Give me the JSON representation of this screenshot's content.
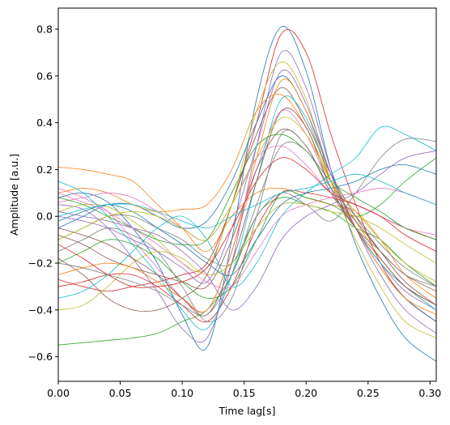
{
  "chart_data": {
    "type": "line",
    "title": "",
    "xlabel": "Time lag[s]",
    "ylabel": "Amplitude [a.u.]",
    "xlim": [
      0.0,
      0.305
    ],
    "ylim": [
      -0.705,
      0.89
    ],
    "xticks": [
      0.0,
      0.05,
      0.1,
      0.15,
      0.2,
      0.25,
      0.3
    ],
    "xtick_labels": [
      "0.00",
      "0.05",
      "0.10",
      "0.15",
      "0.20",
      "0.25",
      "0.30"
    ],
    "yticks": [
      -0.6,
      -0.4,
      -0.2,
      0.0,
      0.2,
      0.4,
      0.6,
      0.8
    ],
    "ytick_labels": [
      "−0.6",
      "−0.4",
      "−0.2",
      "0.0",
      "0.2",
      "0.4",
      "0.6",
      "0.8"
    ],
    "grid": false,
    "legend": "none",
    "colors": [
      "#1f77b4",
      "#ff7f0e",
      "#2ca02c",
      "#d62728",
      "#9467bd",
      "#8c564b",
      "#e377c2",
      "#7f7f7f",
      "#bcbd22",
      "#17becf"
    ],
    "x": [
      0.0,
      0.02,
      0.04,
      0.06,
      0.08,
      0.1,
      0.12,
      0.14,
      0.16,
      0.18,
      0.2,
      0.22,
      0.24,
      0.26,
      0.28,
      0.305
    ],
    "series": [
      {
        "values": [
          0.08,
          0.1,
          0.06,
          -0.05,
          -0.2,
          -0.42,
          -0.56,
          -0.1,
          0.5,
          0.81,
          0.62,
          0.2,
          -0.12,
          -0.35,
          -0.52,
          -0.62
        ]
      },
      {
        "values": [
          0.21,
          0.2,
          0.18,
          0.15,
          0.05,
          -0.05,
          -0.15,
          0.0,
          0.1,
          0.12,
          0.08,
          0.05,
          0.02,
          -0.1,
          -0.25,
          -0.35
        ]
      },
      {
        "values": [
          -0.55,
          -0.54,
          -0.53,
          -0.52,
          -0.5,
          -0.45,
          -0.4,
          -0.25,
          0.0,
          0.08,
          0.05,
          0.02,
          -0.05,
          -0.1,
          -0.2,
          -0.3
        ]
      },
      {
        "values": [
          -0.27,
          -0.3,
          -0.32,
          -0.3,
          -0.28,
          -0.25,
          -0.2,
          0.05,
          0.4,
          0.78,
          0.7,
          0.35,
          0.05,
          -0.2,
          -0.35,
          -0.45
        ]
      },
      {
        "values": [
          0.05,
          0.03,
          -0.05,
          -0.18,
          -0.32,
          -0.48,
          -0.52,
          -0.2,
          0.3,
          0.7,
          0.55,
          0.2,
          -0.05,
          -0.25,
          -0.4,
          -0.5
        ]
      },
      {
        "values": [
          -0.18,
          -0.25,
          -0.35,
          -0.4,
          -0.4,
          -0.35,
          -0.25,
          0.05,
          0.35,
          0.55,
          0.4,
          0.18,
          0.0,
          -0.15,
          -0.28,
          -0.38
        ]
      },
      {
        "values": [
          0.12,
          0.08,
          0.02,
          -0.1,
          -0.22,
          -0.35,
          -0.4,
          -0.15,
          0.2,
          0.45,
          0.35,
          0.12,
          -0.05,
          -0.2,
          -0.3,
          -0.38
        ]
      },
      {
        "values": [
          -0.1,
          -0.05,
          0.0,
          0.0,
          -0.05,
          -0.1,
          -0.18,
          -0.2,
          0.0,
          0.1,
          0.05,
          -0.02,
          0.1,
          0.25,
          0.33,
          0.32
        ]
      },
      {
        "values": [
          0.02,
          0.05,
          0.04,
          -0.02,
          -0.1,
          -0.2,
          -0.22,
          0.05,
          0.45,
          0.66,
          0.5,
          0.15,
          -0.1,
          -0.3,
          -0.45,
          -0.52
        ]
      },
      {
        "values": [
          -0.35,
          -0.32,
          -0.25,
          -0.15,
          -0.05,
          0.0,
          -0.1,
          -0.3,
          -0.2,
          0.0,
          0.1,
          0.18,
          0.25,
          0.38,
          0.35,
          0.28
        ]
      },
      {
        "values": [
          -0.05,
          0.0,
          0.05,
          0.05,
          0.0,
          -0.05,
          -0.02,
          0.15,
          0.4,
          0.6,
          0.45,
          0.18,
          -0.05,
          -0.22,
          -0.35,
          -0.45
        ]
      },
      {
        "values": [
          0.1,
          0.12,
          0.1,
          0.05,
          0.02,
          0.03,
          0.05,
          0.2,
          0.45,
          0.52,
          0.38,
          0.15,
          -0.02,
          -0.18,
          -0.3,
          -0.4
        ]
      },
      {
        "values": [
          -0.2,
          -0.15,
          -0.1,
          -0.12,
          -0.18,
          -0.28,
          -0.35,
          -0.3,
          -0.1,
          0.1,
          0.08,
          0.05,
          0.0,
          0.05,
          0.15,
          0.25
        ]
      },
      {
        "values": [
          -0.3,
          -0.28,
          -0.25,
          -0.25,
          -0.3,
          -0.38,
          -0.45,
          -0.3,
          -0.05,
          0.1,
          0.1,
          0.08,
          0.05,
          0.0,
          -0.05,
          -0.1
        ]
      },
      {
        "values": [
          0.0,
          -0.02,
          -0.05,
          -0.1,
          -0.15,
          -0.22,
          -0.28,
          -0.05,
          0.3,
          0.62,
          0.48,
          0.18,
          -0.05,
          -0.2,
          -0.32,
          -0.4
        ]
      },
      {
        "values": [
          -0.08,
          -0.12,
          -0.18,
          -0.22,
          -0.25,
          -0.28,
          -0.3,
          -0.1,
          0.2,
          0.37,
          0.3,
          0.1,
          -0.02,
          -0.15,
          -0.25,
          -0.32
        ]
      },
      {
        "values": [
          0.06,
          0.08,
          0.1,
          0.08,
          0.02,
          -0.05,
          -0.1,
          0.05,
          0.25,
          0.3,
          0.22,
          0.1,
          0.05,
          0.0,
          -0.05,
          -0.08
        ]
      },
      {
        "values": [
          -0.15,
          -0.1,
          -0.05,
          -0.08,
          -0.15,
          -0.3,
          -0.45,
          -0.35,
          0.0,
          0.35,
          0.3,
          0.1,
          -0.05,
          -0.15,
          -0.25,
          -0.3
        ]
      },
      {
        "values": [
          -0.4,
          -0.38,
          -0.3,
          -0.2,
          -0.15,
          -0.18,
          -0.25,
          -0.2,
          -0.05,
          0.05,
          0.05,
          0.02,
          0.0,
          -0.05,
          -0.12,
          -0.2
        ]
      },
      {
        "values": [
          0.15,
          0.1,
          0.0,
          -0.12,
          -0.25,
          -0.4,
          -0.48,
          -0.25,
          0.15,
          0.5,
          0.42,
          0.15,
          -0.05,
          -0.2,
          -0.3,
          -0.4
        ]
      },
      {
        "values": [
          -0.02,
          0.02,
          0.05,
          0.02,
          -0.05,
          -0.12,
          -0.2,
          -0.25,
          -0.1,
          0.05,
          0.1,
          0.12,
          0.15,
          0.2,
          0.22,
          0.18
        ]
      },
      {
        "values": [
          -0.25,
          -0.22,
          -0.2,
          -0.22,
          -0.28,
          -0.35,
          -0.4,
          -0.15,
          0.25,
          0.58,
          0.45,
          0.15,
          -0.05,
          -0.22,
          -0.35,
          -0.42
        ]
      },
      {
        "values": [
          0.08,
          0.05,
          0.0,
          -0.05,
          -0.1,
          -0.12,
          -0.1,
          0.1,
          0.3,
          0.35,
          0.28,
          0.15,
          0.08,
          0.02,
          -0.05,
          -0.1
        ]
      },
      {
        "values": [
          -0.12,
          -0.18,
          -0.25,
          -0.3,
          -0.3,
          -0.28,
          -0.22,
          -0.05,
          0.15,
          0.25,
          0.2,
          0.1,
          0.05,
          0.0,
          -0.08,
          -0.15
        ]
      },
      {
        "values": [
          0.02,
          0.0,
          -0.02,
          -0.05,
          -0.08,
          -0.15,
          -0.25,
          -0.4,
          -0.3,
          -0.1,
          0.0,
          0.05,
          0.1,
          0.18,
          0.25,
          0.28
        ]
      },
      {
        "values": [
          -0.05,
          -0.08,
          -0.12,
          -0.18,
          -0.25,
          -0.35,
          -0.42,
          -0.2,
          0.15,
          0.45,
          0.38,
          0.12,
          -0.05,
          -0.18,
          -0.3,
          -0.38
        ]
      },
      {
        "values": [
          0.1,
          0.06,
          0.02,
          -0.05,
          -0.12,
          -0.2,
          -0.28,
          -0.3,
          -0.15,
          0.0,
          0.05,
          0.08,
          0.1,
          0.12,
          0.1,
          0.05
        ]
      },
      {
        "values": [
          -0.2,
          -0.22,
          -0.25,
          -0.28,
          -0.32,
          -0.38,
          -0.42,
          -0.25,
          0.05,
          0.3,
          0.28,
          0.12,
          0.0,
          -0.12,
          -0.22,
          -0.3
        ]
      },
      {
        "values": [
          -0.1,
          -0.05,
          0.0,
          0.02,
          0.0,
          -0.05,
          -0.1,
          0.05,
          0.25,
          0.42,
          0.35,
          0.15,
          0.02,
          -0.1,
          -0.2,
          -0.28
        ]
      },
      {
        "values": [
          0.0,
          0.03,
          0.05,
          0.05,
          0.02,
          -0.02,
          -0.05,
          0.0,
          0.05,
          0.1,
          0.12,
          0.15,
          0.18,
          0.15,
          0.1,
          0.05
        ]
      }
    ]
  }
}
